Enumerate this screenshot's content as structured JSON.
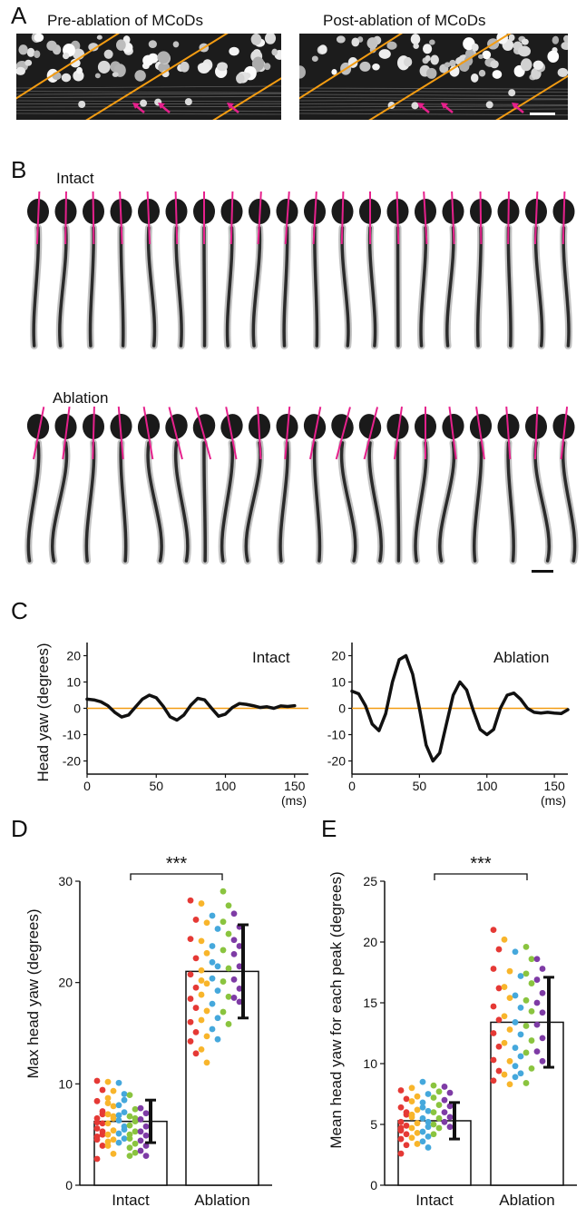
{
  "panels": {
    "A": {
      "label": "A",
      "left_title": "Pre-ablation of MCoDs",
      "right_title": "Post-ablation of MCoDs",
      "colors": {
        "guide_line": "#f39c12",
        "arrow": "#e6218c",
        "scale_bar": "#ffffff"
      }
    },
    "B": {
      "label": "B",
      "intact_label": "Intact",
      "ablation_label": "Ablation",
      "frame_count": 20,
      "intact_head_angles_deg": [
        3,
        1,
        -1,
        -3,
        -3,
        -2,
        0,
        2,
        4,
        5,
        4,
        2,
        0,
        -2,
        -4,
        -3,
        -1,
        1,
        3,
        2
      ],
      "ablation_head_angles_deg": [
        14,
        9,
        2,
        -6,
        -12,
        -18,
        -20,
        -14,
        -4,
        6,
        14,
        19,
        18,
        10,
        0,
        -9,
        -11,
        -5,
        3,
        8
      ],
      "colors": {
        "midline": "#e6218c",
        "larva": "#1a1a1a"
      }
    },
    "C": {
      "label": "C",
      "ylabel": "Head yaw (degrees)",
      "xunit": "(ms)",
      "colors": {
        "trace": "#111111",
        "zero_line": "#f39c12"
      }
    },
    "D": {
      "label": "D",
      "ylabel": "Max head yaw (degrees)",
      "significance": "***"
    },
    "E": {
      "label": "E",
      "ylabel": "Mean head yaw for each peak (degrees)",
      "significance": "***"
    }
  },
  "fish_colors": [
    "#e53935",
    "#f8b52b",
    "#45a8dc",
    "#8ac43f",
    "#7e3ba5"
  ],
  "chart_data": [
    {
      "type": "line",
      "name": "Intact",
      "title": "Intact",
      "xlabel": "(ms)",
      "ylabel": "Head yaw (degrees)",
      "xlim": [
        0,
        160
      ],
      "ylim": [
        -25,
        25
      ],
      "xticks": [
        0,
        50,
        100,
        150
      ],
      "yticks": [
        -20,
        -10,
        0,
        10,
        20
      ],
      "x": [
        0,
        5,
        10,
        15,
        20,
        25,
        30,
        35,
        40,
        45,
        50,
        55,
        60,
        65,
        70,
        75,
        80,
        85,
        90,
        95,
        100,
        105,
        110,
        115,
        120,
        125,
        130,
        135,
        140,
        145,
        150
      ],
      "y": [
        3.5,
        3.2,
        2.5,
        1,
        -1.5,
        -3.3,
        -2.5,
        0.5,
        3.5,
        5,
        4,
        0.8,
        -3.2,
        -4.5,
        -2.5,
        1.2,
        3.8,
        3.2,
        0,
        -3,
        -2.2,
        0.3,
        1.8,
        1.5,
        1,
        0.3,
        0.6,
        0,
        0.9,
        0.7,
        1
      ]
    },
    {
      "type": "line",
      "name": "Ablation",
      "title": "Ablation",
      "xlabel": "(ms)",
      "ylabel": "Head yaw (degrees)",
      "xlim": [
        0,
        160
      ],
      "ylim": [
        -25,
        25
      ],
      "xticks": [
        0,
        50,
        100,
        150
      ],
      "yticks": [
        -20,
        -10,
        0,
        10,
        20
      ],
      "x": [
        0,
        5,
        10,
        15,
        20,
        25,
        30,
        35,
        40,
        45,
        50,
        55,
        60,
        65,
        70,
        75,
        80,
        85,
        90,
        95,
        100,
        105,
        110,
        115,
        120,
        125,
        130,
        135,
        140,
        145,
        150,
        155,
        160
      ],
      "y": [
        6.5,
        5.5,
        1,
        -6,
        -8.5,
        -2,
        10,
        18.5,
        20,
        13,
        0,
        -14,
        -20,
        -17,
        -6,
        5,
        10,
        7,
        -1,
        -8,
        -10,
        -8,
        0,
        5,
        5.8,
        3.5,
        0,
        -1.5,
        -1.8,
        -1.5,
        -1.8,
        -2,
        -0.5
      ]
    },
    {
      "type": "bar",
      "title": "",
      "xlabel": "",
      "ylabel": "Max head yaw (degrees)",
      "ylim": [
        0,
        30
      ],
      "yticks": [
        0,
        10,
        20,
        30
      ],
      "categories": [
        "Intact",
        "Ablation"
      ],
      "values": [
        6.3,
        21.1
      ],
      "sd": [
        2.1,
        4.6
      ],
      "significance": "***",
      "points": [
        [
          [
            10.3,
            9.4,
            8.3,
            7.3,
            6.6,
            6.1,
            5.6,
            5.0,
            4.5,
            3.9,
            2.6,
            7.0,
            6.2,
            5.3,
            4.8
          ],
          [
            10.2,
            9.3,
            8.6,
            7.8,
            7.0,
            6.6,
            6.1,
            5.4,
            5.0,
            4.5,
            3.9,
            3.1,
            8.1,
            6.8,
            4.3
          ],
          [
            10.1,
            9.0,
            7.9,
            7.2,
            6.4,
            5.8,
            5.1,
            4.6,
            6.9,
            5.5,
            4.2,
            8.4
          ],
          [
            8.9,
            7.5,
            6.8,
            6.3,
            5.9,
            5.3,
            4.6,
            4.1,
            3.7,
            3.2,
            2.9,
            6.6,
            5.0
          ],
          [
            7.6,
            7.1,
            6.5,
            5.8,
            5.3,
            4.9,
            4.4,
            3.9,
            3.4,
            2.9
          ]
        ],
        [
          [
            28.1,
            26.2,
            24.3,
            22.4,
            20.8,
            19.5,
            18.4,
            17.5,
            16.1,
            15.1,
            14.2,
            13.0
          ],
          [
            27.8,
            25.9,
            24.1,
            22.9,
            21.2,
            19.9,
            18.8,
            17.2,
            16.3,
            14.7,
            13.4,
            12.1,
            20.2
          ],
          [
            26.6,
            25.3,
            23.6,
            21.6,
            20.4,
            19.2,
            17.9,
            16.5,
            15.4,
            14.4,
            22.0
          ],
          [
            29.0,
            27.6,
            26.0,
            24.8,
            23.2,
            21.4,
            20.1,
            18.6,
            17.1,
            15.9
          ],
          [
            26.8,
            25.5,
            24.2,
            23.6,
            22.8,
            21.6,
            20.3,
            19.4,
            18.5,
            18.1
          ]
        ]
      ]
    },
    {
      "type": "bar",
      "title": "",
      "xlabel": "",
      "ylabel": "Mean head yaw for each peak (degrees)",
      "ylim": [
        0,
        25
      ],
      "yticks": [
        0,
        5,
        10,
        15,
        20,
        25
      ],
      "categories": [
        "Intact",
        "Ablation"
      ],
      "values": [
        5.3,
        13.4
      ],
      "sd": [
        1.5,
        3.7
      ],
      "significance": "***",
      "points": [
        [
          [
            7.8,
            7.1,
            6.4,
            5.8,
            5.2,
            4.9,
            4.5,
            4.2,
            3.8,
            3.3,
            2.6,
            6.0,
            4.7
          ],
          [
            8.0,
            7.3,
            6.9,
            6.2,
            5.6,
            5.1,
            4.7,
            4.3,
            3.9,
            3.4,
            5.8
          ],
          [
            8.5,
            7.5,
            6.8,
            6.1,
            5.5,
            4.8,
            4.4,
            4.0,
            3.6,
            3.1,
            6.4,
            5.2
          ],
          [
            8.2,
            7.7,
            7.2,
            6.6,
            6.0,
            5.5,
            5.0,
            4.7,
            4.2
          ],
          [
            8.1,
            7.6,
            7.0,
            6.5,
            6.0,
            5.6,
            5.2,
            4.8
          ]
        ],
        [
          [
            21.0,
            19.4,
            17.8,
            16.2,
            14.7,
            13.6,
            12.5,
            11.4,
            10.3,
            9.4,
            8.6
          ],
          [
            20.2,
            17.6,
            16.3,
            15.4,
            13.9,
            12.8,
            11.7,
            10.2,
            9.1,
            8.3
          ],
          [
            19.2,
            17.2,
            15.6,
            14.6,
            13.4,
            12.4,
            11.3,
            10.6,
            9.8,
            9.2,
            8.9
          ],
          [
            19.6,
            18.6,
            17.4,
            16.6,
            15.2,
            14.3,
            13.1,
            11.9,
            10.9,
            9.6,
            8.4
          ],
          [
            18.6,
            17.8,
            16.9,
            15.8,
            15.0,
            14.2,
            13.2,
            12.1,
            11.0,
            10.2
          ]
        ]
      ]
    }
  ]
}
